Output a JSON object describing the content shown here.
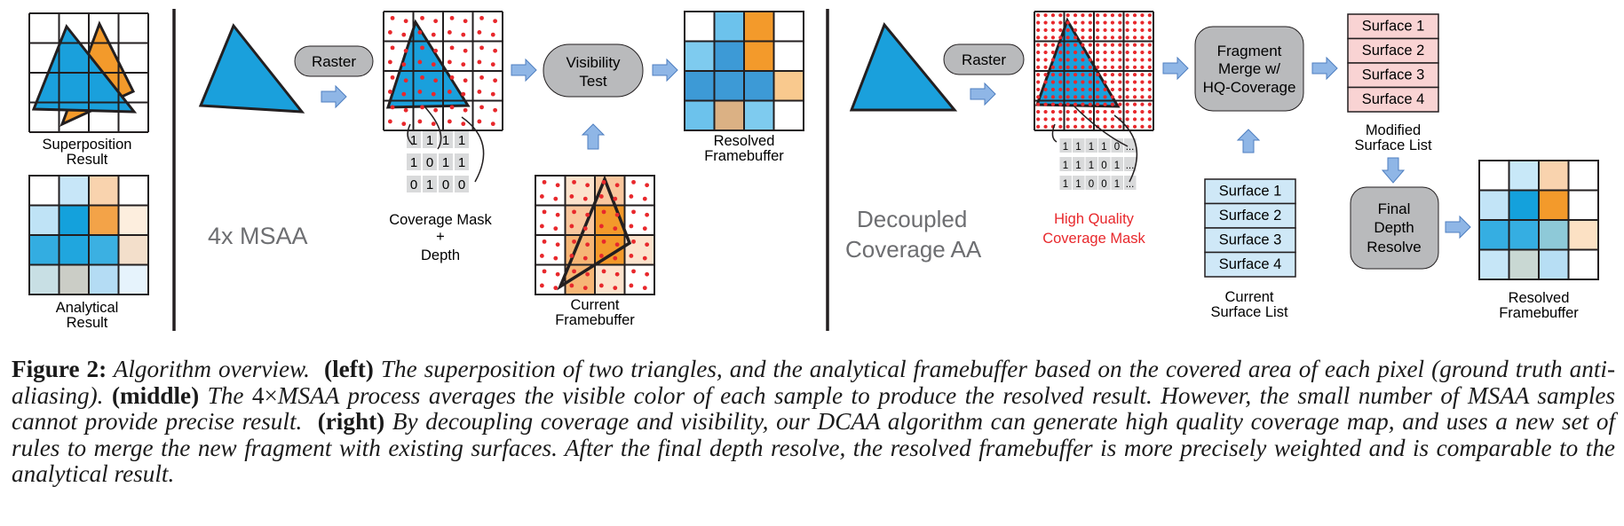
{
  "figure": {
    "left": {
      "superposition_label": [
        "Superposition",
        "Result"
      ],
      "analytical_label": [
        "Analytical",
        "Result"
      ]
    },
    "middle": {
      "method": "4x MSAA",
      "raster": "Raster",
      "visibility": [
        "Visibility",
        "Test"
      ],
      "mask_bits": [
        "1 1 1 1",
        "1 0 1 1",
        "0 1 0 0"
      ],
      "mask_label": [
        "Coverage Mask",
        "+",
        "Depth"
      ],
      "current_label": [
        "Current",
        "Framebuffer"
      ],
      "resolved_label": [
        "Resolved",
        "Framebuffer"
      ]
    },
    "right": {
      "method": [
        "Decoupled",
        "Coverage AA"
      ],
      "raster": "Raster",
      "merge": [
        "Fragment",
        "Merge w/",
        "HQ-Coverage"
      ],
      "mask_bits": [
        "1 1 1 1 0 ...",
        "1 1 1 0 1 ...",
        "1 1 0 0 1 ..."
      ],
      "hq_label": [
        "High Quality",
        "Coverage Mask"
      ],
      "current_surfaces": [
        "Surface 1",
        "Surface 2",
        "Surface 3",
        "Surface 4"
      ],
      "current_surface_label": [
        "Current",
        "Surface List"
      ],
      "modified_surfaces": [
        "Surface 1",
        "Surface 2",
        "Surface 3",
        "Surface 4"
      ],
      "modified_surface_label": [
        "Modified",
        "Surface List"
      ],
      "final": [
        "Final",
        "Depth",
        "Resolve"
      ],
      "resolved_label": [
        "Resolved",
        "Framebuffer"
      ]
    },
    "colors": {
      "triangle_blue": "#1aa0dc",
      "triangle_orange": "#f39a2b",
      "sample_red": "#e8282c",
      "node_gray": "#b9babc",
      "arrow_blue": "#8fb6e6",
      "hq_red": "#e8282c",
      "surface_blue": "#cfe8f7",
      "surface_pink": "#f9d3d3"
    }
  },
  "caption": {
    "label": "Figure 2:",
    "p1": "Algorithm overview.",
    "left_tag": "(left)",
    "p2": "The superposition of two triangles, and the analytical framebuffer based on the covered area of each pixel (ground truth anti-aliasing).",
    "middle_tag": "(middle)",
    "p3a": "The",
    "p3math": "4×",
    "p3b": "MSAA process averages the visible color of each sample to produce the resolved result. However, the small number of MSAA samples cannot provide precise result.",
    "right_tag": "(right)",
    "p4": "By decoupling coverage and visibility, our DCAA algorithm can generate high quality coverage map, and uses a new set of rules to merge the new fragment with existing surfaces. After the final depth resolve, the resolved framebuffer is more precisely weighted and is comparable to the analytical result."
  }
}
